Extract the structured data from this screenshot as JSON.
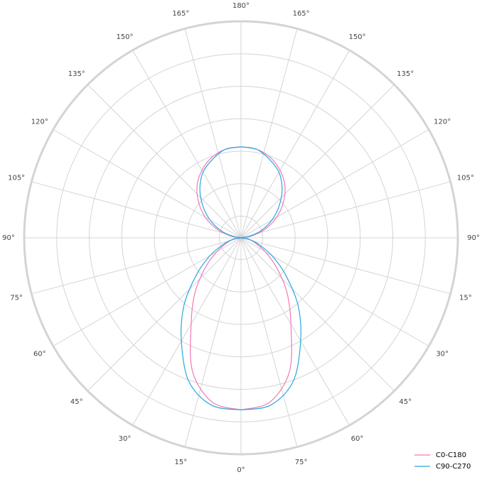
{
  "chart_data": {
    "type": "polar",
    "angle_labels": [
      "0°",
      "15°",
      "30°",
      "45°",
      "60°",
      "75°",
      "90°",
      "105°",
      "120°",
      "135°",
      "150°",
      "165°",
      "180°",
      "165°",
      "150°",
      "135°",
      "120°",
      "105°",
      "90°",
      "15°",
      "30°",
      "45°",
      "60°",
      "75°"
    ],
    "theta": [
      0,
      10,
      20,
      30,
      40,
      50,
      60,
      70,
      80,
      90,
      100,
      110,
      120,
      130,
      140,
      150,
      160,
      170,
      180
    ],
    "rlim": [
      0,
      200
    ],
    "rticks": [
      20,
      50,
      80,
      110,
      140,
      170,
      200
    ],
    "grid": true,
    "legend": "bottom-right",
    "series": [
      {
        "name": "C0-C180",
        "color": "#f07ab4",
        "values": [
          159,
          154,
          131,
          92,
          66,
          43,
          26,
          14,
          7,
          0,
          10,
          24,
          38,
          51,
          63,
          72,
          79,
          83,
          84
        ]
      },
      {
        "name": "C90-C270",
        "color": "#29a8e0",
        "values": [
          159,
          157,
          141,
          110,
          82,
          54,
          33,
          17,
          7,
          0,
          8,
          20,
          33,
          46,
          59,
          70,
          77,
          83,
          84
        ]
      }
    ]
  }
}
